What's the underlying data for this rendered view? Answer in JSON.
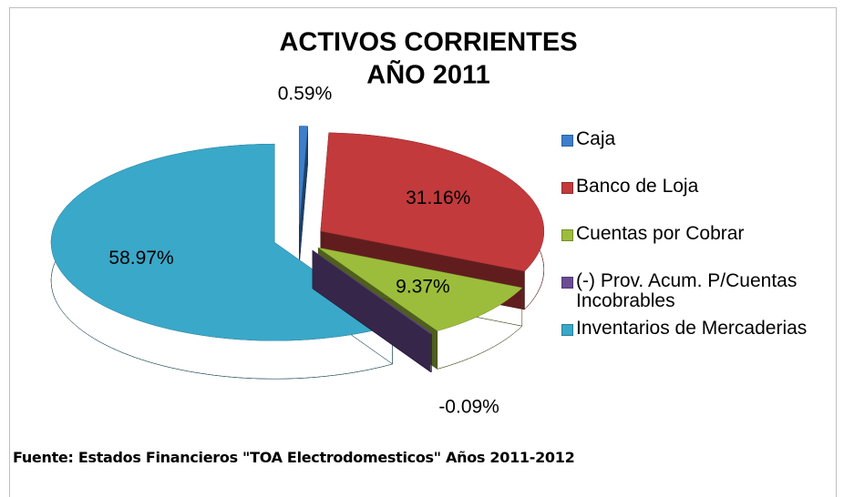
{
  "chart_data": {
    "type": "pie",
    "title": [
      "ACTIVOS CORRIENTES",
      "AÑO 2011"
    ],
    "categories": [
      "Caja",
      "Banco de Loja",
      "Cuentas por Cobrar",
      "(-) Prov. Acum. P/Cuentas Incobrables",
      "Inventarios de Mercaderias"
    ],
    "values": [
      0.59,
      31.16,
      9.37,
      -0.09,
      58.97
    ],
    "value_labels": [
      "0.59%",
      "31.16%",
      "9.37%",
      "-0.09%",
      "58.97%"
    ],
    "colors": [
      "#3d7fcb",
      "#c23a3c",
      "#9cbd3c",
      "#6b4c94",
      "#3aa8c9"
    ],
    "legend": "right"
  },
  "footer": "Fuente: Estados Financieros \"TOA Electrodomesticos\" Años 2011-2012"
}
